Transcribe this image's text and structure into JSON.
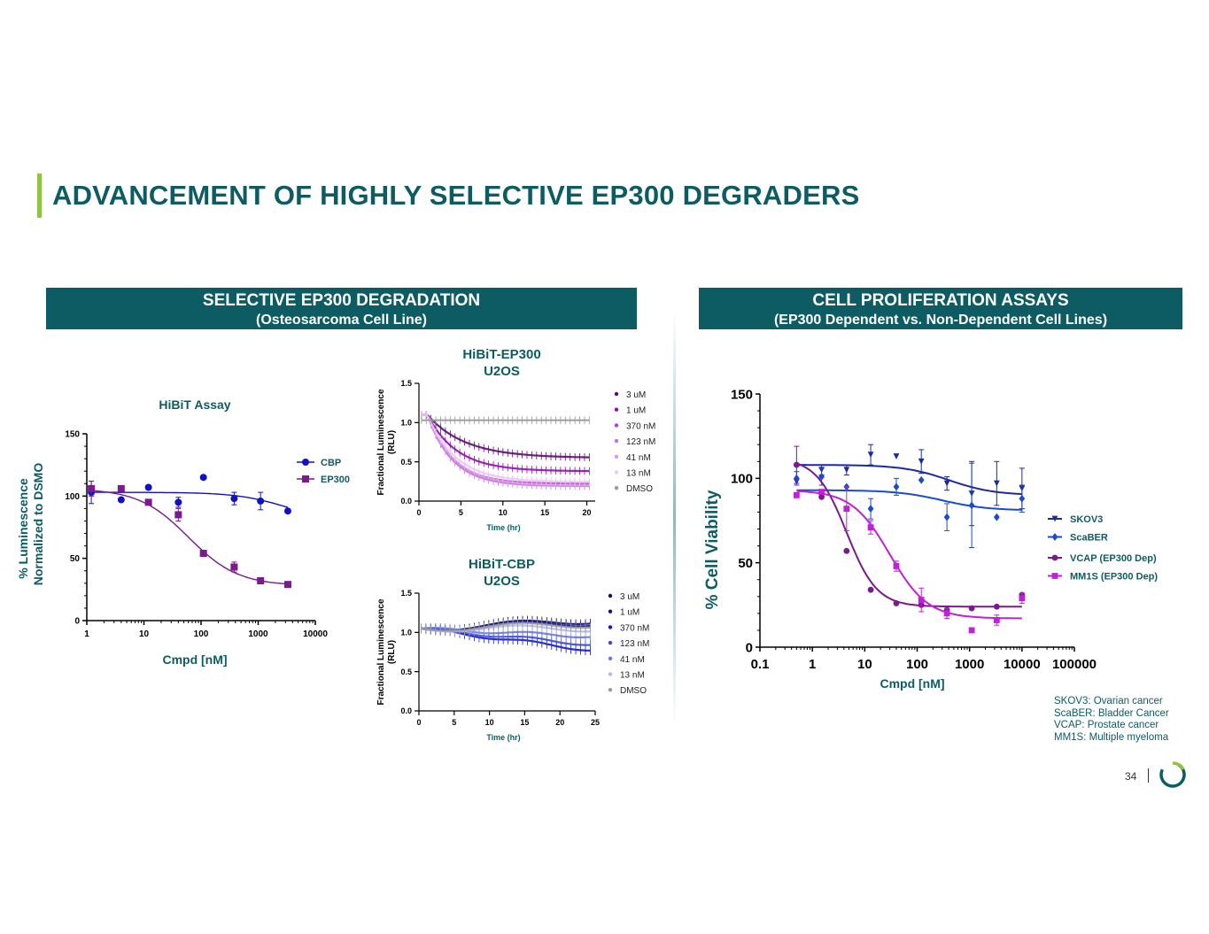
{
  "title": "ADVANCEMENT OF HIGHLY SELECTIVE EP300 DEGRADERS",
  "left_panel": {
    "heading": "SELECTIVE EP300 DEGRADATION",
    "subheading": "(Osteosarcoma Cell Line)"
  },
  "right_panel": {
    "heading": "CELL PROLIFERATION ASSAYS",
    "subheading": "(EP300 Dependent  vs. Non-Dependent Cell Lines)"
  },
  "footnote": [
    "SKOV3: Ovarian cancer",
    "ScaBER: Bladder Cancer",
    "VCAP: Prostate cancer",
    "MM1S: Multiple myeloma"
  ],
  "page_number": "34",
  "colors": {
    "brand": "#0d5c63",
    "accent": "#8dc63f"
  },
  "chart_data": [
    {
      "id": "hibit",
      "type": "scatter",
      "title": "HiBiT Assay",
      "xlabel": "Cmpd [nM]",
      "ylabel": [
        "% Luminescence",
        "Normalized to DSMO"
      ],
      "xscale": "log",
      "xlim": [
        1,
        10000
      ],
      "ylim": [
        0,
        150
      ],
      "xticks": [
        1,
        10,
        100,
        1000,
        10000
      ],
      "xtick_labels": [
        "1",
        "10",
        "100",
        "1000",
        "10000"
      ],
      "yticks": [
        0,
        50,
        100,
        150
      ],
      "ytick_labels": [
        "0",
        "50",
        "100",
        "150"
      ],
      "legend": "right",
      "series": [
        {
          "name": "CBP",
          "color": "#1010c8",
          "marker": "circle",
          "x": [
            1.2,
            4,
            12,
            40,
            110,
            380,
            1100,
            3300
          ],
          "y": [
            103,
            97,
            107,
            95,
            115,
            98,
            96,
            88
          ],
          "err": [
            9,
            0,
            0,
            4,
            0,
            5,
            7,
            0
          ],
          "fit": {
            "top": 103,
            "bottom": 80,
            "ec50": 3000,
            "hill": 1
          }
        },
        {
          "name": "EP300",
          "color": "#7a1a8c",
          "marker": "square",
          "x": [
            1.2,
            4,
            12,
            40,
            110,
            380,
            1100,
            3300
          ],
          "y": [
            106,
            106,
            95,
            85,
            54,
            43,
            32,
            29
          ],
          "err": [
            6,
            0,
            0,
            5,
            0,
            4,
            0,
            0
          ],
          "fit": {
            "top": 106,
            "bottom": 28,
            "ec50": 60,
            "hill": 1
          }
        }
      ]
    },
    {
      "id": "ep300_time",
      "type": "line",
      "title": [
        "HiBiT-EP300",
        "U2OS"
      ],
      "xlabel": "Time (hr)",
      "ylabel": [
        "Fractional  Luminescence",
        "(RLU)"
      ],
      "xlim": [
        0,
        21
      ],
      "ylim": [
        0,
        1.5
      ],
      "xticks": [
        0,
        5,
        10,
        15,
        20
      ],
      "xtick_labels": [
        "0",
        "5",
        "10",
        "15",
        "20"
      ],
      "yticks": [
        0,
        0.5,
        1.0,
        1.5
      ],
      "ytick_labels": [
        "0.0",
        "0.5",
        "1.0",
        "1.5"
      ],
      "series": [
        {
          "name": "3 uM",
          "color": "#5e0a72",
          "end": 0.55,
          "tau": 4.5
        },
        {
          "name": "1 uM",
          "color": "#9010b0",
          "end": 0.38,
          "tau": 3.5
        },
        {
          "name": "370 nM",
          "color": "#b040d0",
          "end": 0.22,
          "tau": 3.0
        },
        {
          "name": "123 nM",
          "color": "#c870e0",
          "end": 0.19,
          "tau": 3.0
        },
        {
          "name": "41 nM",
          "color": "#d99ae8",
          "end": 0.2,
          "tau": 3.2
        },
        {
          "name": "13 nM",
          "color": "#ecc8f2",
          "end": 0.24,
          "tau": 3.4
        },
        {
          "name": "DMSO",
          "color": "#9a9a9a",
          "end": 1.03,
          "tau": 0
        }
      ]
    },
    {
      "id": "cbp_time",
      "type": "line",
      "title": [
        "HiBiT-CBP",
        "U2OS"
      ],
      "xlabel": "Time (hr)",
      "ylabel": [
        "Fractional  Luminescence",
        "(RLU)"
      ],
      "xlim": [
        0,
        25
      ],
      "ylim": [
        0,
        1.5
      ],
      "xticks": [
        0,
        5,
        10,
        15,
        20,
        25
      ],
      "xtick_labels": [
        "0",
        "5",
        "10",
        "15",
        "20",
        "25"
      ],
      "yticks": [
        0,
        0.5,
        1.0,
        1.5
      ],
      "ytick_labels": [
        "0.0",
        "0.5",
        "1.0",
        "1.5"
      ],
      "series": [
        {
          "name": "3 uM",
          "color": "#0b0b6e",
          "end": 1.15
        },
        {
          "name": "1 uM",
          "color": "#101090",
          "end": 1.12
        },
        {
          "name": "370 nM",
          "color": "#1414c8",
          "end": 0.78
        },
        {
          "name": "123 nM",
          "color": "#3a4ad8",
          "end": 0.85
        },
        {
          "name": "41 nM",
          "color": "#6a78e0",
          "end": 0.95
        },
        {
          "name": "13 nM",
          "color": "#b0b8ee",
          "end": 1.05
        },
        {
          "name": "DMSO",
          "color": "#9a9a9a",
          "end": 1.1
        }
      ]
    },
    {
      "id": "viability",
      "type": "scatter",
      "xlabel": "Cmpd [nM]",
      "ylabel": "% Cell Viability",
      "xscale": "log",
      "xlim": [
        0.1,
        100000
      ],
      "ylim": [
        0,
        150
      ],
      "xticks": [
        0.1,
        1,
        10,
        100,
        1000,
        10000,
        100000
      ],
      "xtick_labels": [
        "0.1",
        "1",
        "10",
        "100",
        "1000",
        "10000",
        "100000"
      ],
      "yticks": [
        0,
        50,
        100,
        150
      ],
      "ytick_labels": [
        "0",
        "50",
        "100",
        "150"
      ],
      "legend": "right",
      "series": [
        {
          "name": "SKOV3",
          "color": "#1a2aa0",
          "marker": "triangle-down",
          "x": [
            0.5,
            1.5,
            4.5,
            13,
            40,
            120,
            370,
            1100,
            3300,
            10000
          ],
          "y": [
            98,
            105,
            105,
            114,
            113,
            110,
            97,
            91,
            97,
            94
          ],
          "err": [
            0,
            3,
            3,
            6,
            0,
            7,
            4,
            19,
            13,
            12
          ],
          "fit": {
            "top": 108,
            "bottom": 90,
            "ec50": 400,
            "hill": 1
          }
        },
        {
          "name": "ScaBER",
          "color": "#1a4ad0",
          "marker": "diamond",
          "x": [
            0.5,
            1.5,
            4.5,
            13,
            40,
            120,
            370,
            1100,
            3300,
            10000
          ],
          "y": [
            100,
            101,
            95,
            82,
            95,
            99,
            77,
            84,
            77,
            88
          ],
          "err": [
            4,
            5,
            0,
            6,
            5,
            0,
            8,
            25,
            0,
            8
          ],
          "fit": {
            "top": 93,
            "bottom": 81,
            "ec50": 300,
            "hill": 1
          }
        },
        {
          "name": "VCAP (EP300 Dep)",
          "color": "#7a1a8c",
          "marker": "circle",
          "x": [
            0.5,
            1.5,
            4.5,
            13,
            40,
            120,
            370,
            1100,
            3300,
            10000
          ],
          "y": [
            108,
            89,
            57,
            34,
            26,
            25,
            22,
            23,
            24,
            31
          ],
          "err": [
            11,
            0,
            0,
            0,
            0,
            0,
            0,
            0,
            0,
            0
          ],
          "fit": {
            "top": 112,
            "bottom": 24,
            "ec50": 4.5,
            "hill": 1.5
          }
        },
        {
          "name": "MM1S (EP300 Dep)",
          "color": "#c020d8",
          "marker": "square",
          "x": [
            0.5,
            1.5,
            4.5,
            13,
            40,
            120,
            370,
            1100,
            3300,
            10000
          ],
          "y": [
            90,
            92,
            82,
            71,
            48,
            28,
            20,
            10,
            16,
            29
          ],
          "err": [
            0,
            0,
            13,
            4,
            3,
            7,
            3,
            0,
            3,
            3
          ],
          "fit": {
            "top": 93,
            "bottom": 17,
            "ec50": 30,
            "hill": 1.2
          }
        }
      ]
    }
  ]
}
